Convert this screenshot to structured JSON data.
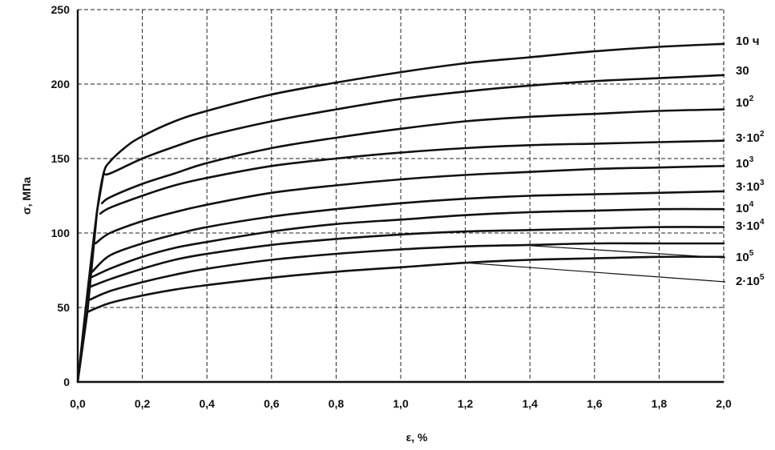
{
  "chart_data": {
    "type": "line",
    "title": "",
    "xlabel": "ε, %",
    "ylabel": "σ, МПа",
    "xlim": [
      0,
      2.0
    ],
    "ylim": [
      0,
      250
    ],
    "grid": true,
    "x_ticks": [
      "0,0",
      "0,2",
      "0,4",
      "0,6",
      "0,8",
      "1,0",
      "1,2",
      "1,4",
      "1,6",
      "1,8",
      "2,0"
    ],
    "y_ticks": [
      "0",
      "50",
      "100",
      "150",
      "200",
      "250"
    ],
    "series": [
      {
        "name": "10 ч",
        "label_main": "10 ч",
        "label_sup": "",
        "points": [
          [
            0,
            0
          ],
          [
            0.03,
            60
          ],
          [
            0.06,
            115
          ],
          [
            0.08,
            140
          ],
          [
            0.1,
            148
          ],
          [
            0.15,
            158
          ],
          [
            0.2,
            165
          ],
          [
            0.3,
            175
          ],
          [
            0.4,
            182
          ],
          [
            0.6,
            193
          ],
          [
            0.8,
            201
          ],
          [
            1.0,
            208
          ],
          [
            1.2,
            214
          ],
          [
            1.4,
            218
          ],
          [
            1.6,
            222
          ],
          [
            1.8,
            225
          ],
          [
            2.0,
            227
          ]
        ]
      },
      {
        "name": "30",
        "label_main": "30",
        "label_sup": "",
        "points": [
          [
            0.08,
            140
          ],
          [
            0.1,
            140
          ],
          [
            0.2,
            150
          ],
          [
            0.3,
            158
          ],
          [
            0.4,
            165
          ],
          [
            0.6,
            175
          ],
          [
            0.8,
            183
          ],
          [
            1.0,
            190
          ],
          [
            1.2,
            195
          ],
          [
            1.4,
            199
          ],
          [
            1.6,
            202
          ],
          [
            1.8,
            204
          ],
          [
            2.0,
            206
          ]
        ]
      },
      {
        "name": "10²",
        "label_main": "10",
        "label_sup": "2",
        "points": [
          [
            0.075,
            120
          ],
          [
            0.1,
            124
          ],
          [
            0.2,
            133
          ],
          [
            0.3,
            140
          ],
          [
            0.4,
            147
          ],
          [
            0.6,
            157
          ],
          [
            0.8,
            164
          ],
          [
            1.0,
            170
          ],
          [
            1.2,
            175
          ],
          [
            1.4,
            178
          ],
          [
            1.6,
            180
          ],
          [
            1.8,
            182
          ],
          [
            2.0,
            183
          ]
        ]
      },
      {
        "name": "3·10²",
        "label_main": "3·10",
        "label_sup": "2",
        "points": [
          [
            0.07,
            113
          ],
          [
            0.1,
            117
          ],
          [
            0.2,
            125
          ],
          [
            0.3,
            132
          ],
          [
            0.4,
            137
          ],
          [
            0.6,
            145
          ],
          [
            0.8,
            150
          ],
          [
            1.0,
            154
          ],
          [
            1.2,
            157
          ],
          [
            1.4,
            159
          ],
          [
            1.6,
            160
          ],
          [
            1.8,
            161
          ],
          [
            2.0,
            162
          ]
        ]
      },
      {
        "name": "10³",
        "label_main": "10",
        "label_sup": "3",
        "points": [
          [
            0.055,
            93
          ],
          [
            0.1,
            100
          ],
          [
            0.2,
            108
          ],
          [
            0.3,
            114
          ],
          [
            0.4,
            119
          ],
          [
            0.6,
            127
          ],
          [
            0.8,
            132
          ],
          [
            1.0,
            136
          ],
          [
            1.2,
            139
          ],
          [
            1.4,
            141
          ],
          [
            1.6,
            143
          ],
          [
            1.8,
            144
          ],
          [
            2.0,
            145
          ]
        ]
      },
      {
        "name": "3·10³",
        "label_main": "3·10",
        "label_sup": "3",
        "points": [
          [
            0.045,
            74
          ],
          [
            0.1,
            85
          ],
          [
            0.2,
            93
          ],
          [
            0.3,
            99
          ],
          [
            0.4,
            104
          ],
          [
            0.6,
            111
          ],
          [
            0.8,
            116
          ],
          [
            1.0,
            120
          ],
          [
            1.2,
            123
          ],
          [
            1.4,
            125
          ],
          [
            1.6,
            126
          ],
          [
            1.8,
            127
          ],
          [
            2.0,
            128
          ]
        ]
      },
      {
        "name": "10⁴",
        "label_main": "10",
        "label_sup": "4",
        "points": [
          [
            0.04,
            70
          ],
          [
            0.1,
            76
          ],
          [
            0.2,
            84
          ],
          [
            0.3,
            90
          ],
          [
            0.4,
            94
          ],
          [
            0.6,
            101
          ],
          [
            0.8,
            106
          ],
          [
            1.0,
            109
          ],
          [
            1.2,
            112
          ],
          [
            1.4,
            114
          ],
          [
            1.6,
            115
          ],
          [
            1.8,
            116
          ],
          [
            2.0,
            116
          ]
        ]
      },
      {
        "name": "3·10⁴",
        "label_main": "3·10",
        "label_sup": "4",
        "points": [
          [
            0.04,
            64
          ],
          [
            0.1,
            69
          ],
          [
            0.2,
            76
          ],
          [
            0.3,
            82
          ],
          [
            0.4,
            86
          ],
          [
            0.6,
            92
          ],
          [
            0.8,
            96
          ],
          [
            1.0,
            99
          ],
          [
            1.2,
            101
          ],
          [
            1.4,
            102
          ],
          [
            1.6,
            103
          ],
          [
            1.8,
            104
          ],
          [
            2.0,
            104
          ]
        ]
      },
      {
        "name": "10⁵",
        "label_main": "10",
        "label_sup": "5",
        "points": [
          [
            0.035,
            55
          ],
          [
            0.1,
            61
          ],
          [
            0.2,
            67
          ],
          [
            0.3,
            72
          ],
          [
            0.4,
            76
          ],
          [
            0.6,
            82
          ],
          [
            0.8,
            86
          ],
          [
            1.0,
            89
          ],
          [
            1.2,
            91
          ],
          [
            1.4,
            92
          ],
          [
            1.6,
            93
          ],
          [
            1.8,
            93
          ],
          [
            2.0,
            93
          ]
        ]
      },
      {
        "name": "2·10⁵",
        "label_main": "2·10",
        "label_sup": "5",
        "points": [
          [
            0.03,
            47
          ],
          [
            0.1,
            53
          ],
          [
            0.2,
            58
          ],
          [
            0.3,
            62
          ],
          [
            0.4,
            65
          ],
          [
            0.6,
            70
          ],
          [
            0.8,
            74
          ],
          [
            1.0,
            77
          ],
          [
            1.2,
            80
          ],
          [
            1.4,
            82
          ],
          [
            1.6,
            83
          ],
          [
            1.8,
            84
          ],
          [
            2.0,
            84
          ]
        ]
      }
    ]
  }
}
